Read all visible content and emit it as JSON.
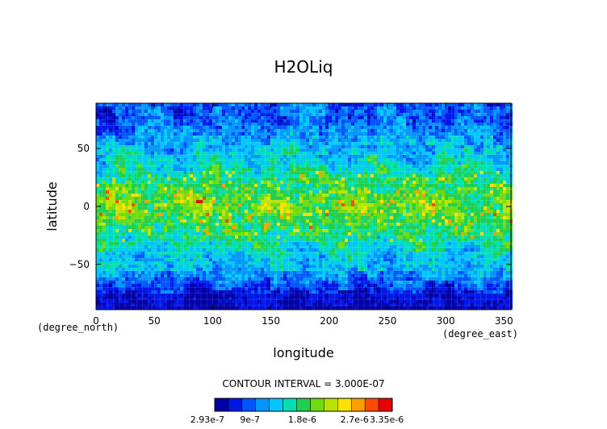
{
  "chart_data": {
    "type": "heatmap",
    "title": "H2OLiq",
    "xlabel": "longitude",
    "ylabel": "latitude",
    "x_unit": "(degree_east)",
    "y_unit": "(degree_north)",
    "xlim": [
      0,
      356
    ],
    "ylim": [
      -89,
      89
    ],
    "x_ticks": [
      0,
      50,
      100,
      150,
      200,
      250,
      300,
      350
    ],
    "y_ticks": [
      50,
      0,
      -50
    ],
    "y_tick_labels": [
      "50",
      "0",
      "−50"
    ],
    "contour_interval_text": "CONTOUR INTERVAL = 3.000E-07",
    "colorbar_labels": [
      "2.93e-7",
      "9e-7",
      "1.8e-6",
      "2.7e-6",
      "3.35e-6"
    ],
    "value_range": [
      2.93e-07,
      3.35e-06
    ],
    "levels": 11,
    "colors": [
      "#0000a6",
      "#0016e6",
      "#0055ff",
      "#0095ff",
      "#00c8ff",
      "#00e0b0",
      "#1ecf50",
      "#6edc10",
      "#b8e400",
      "#ffe000",
      "#ffa000",
      "#ff4a00",
      "#e80000"
    ],
    "latitude_profile": [
      {
        "lat": -89,
        "level": 0
      },
      {
        "lat": -75,
        "level": 1
      },
      {
        "lat": -60,
        "level": 3
      },
      {
        "lat": -45,
        "level": 4
      },
      {
        "lat": -30,
        "level": 5
      },
      {
        "lat": -15,
        "level": 6
      },
      {
        "lat": 0,
        "level": 7
      },
      {
        "lat": 15,
        "level": 6
      },
      {
        "lat": 30,
        "level": 5
      },
      {
        "lat": 45,
        "level": 4
      },
      {
        "lat": 60,
        "level": 3
      },
      {
        "lat": 75,
        "level": 2
      },
      {
        "lat": 89,
        "level": 2
      }
    ],
    "grid": true
  }
}
